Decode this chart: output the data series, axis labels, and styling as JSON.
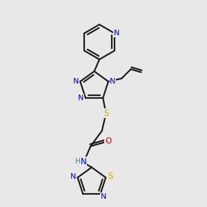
{
  "bg_color": "#e8e8e8",
  "bond_color": "#1a1a1a",
  "N_color": "#0000ee",
  "S_color": "#ccaa00",
  "O_color": "#ff0000",
  "NH_color": "#448888",
  "figsize": [
    3.0,
    3.0
  ],
  "dpi": 100,
  "xlim": [
    0,
    10
  ],
  "ylim": [
    0,
    10
  ]
}
